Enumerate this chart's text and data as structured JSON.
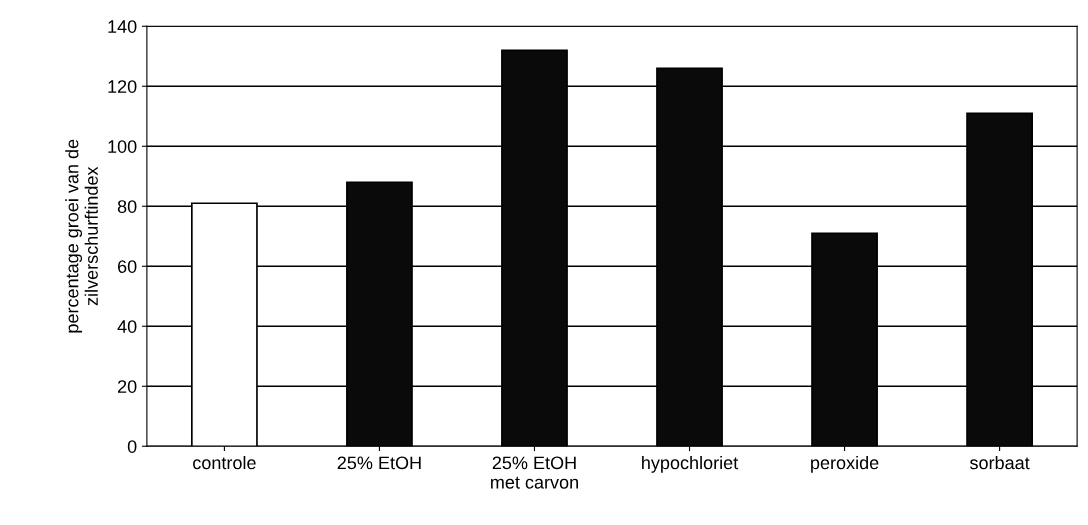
{
  "chart_data": {
    "type": "bar",
    "ylabel": "percentage groei van de\nzilverschurftindex",
    "categories": [
      "controle",
      "25% EtOH",
      "25% EtOH\nmet carvon",
      "hypochloriet",
      "peroxide",
      "sorbaat"
    ],
    "values": [
      81,
      88,
      132,
      126,
      71,
      111
    ],
    "colors": [
      "#ffffff",
      "#0a0a0a",
      "#0a0a0a",
      "#0a0a0a",
      "#0a0a0a",
      "#0a0a0a"
    ],
    "ylim": [
      0,
      140
    ],
    "yticks": [
      0,
      20,
      40,
      60,
      80,
      100,
      120,
      140
    ],
    "grid": "y"
  }
}
